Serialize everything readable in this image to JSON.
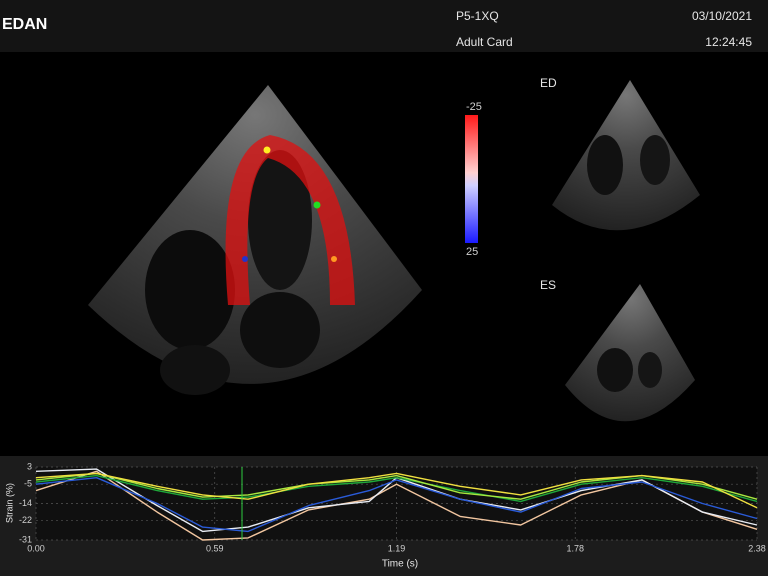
{
  "header": {
    "logo": "EDAN",
    "probe": "P5-1XQ",
    "preset": "Adult Card",
    "date": "03/10/2021",
    "time": "12:24:45"
  },
  "colorbar": {
    "top_label": "-25",
    "bottom_label": "25"
  },
  "thumbnails": {
    "ed_label": "ED",
    "es_label": "ES"
  },
  "strain_chart": {
    "type": "line",
    "x_label": "Time (s)",
    "y_label": "Strain (%)",
    "x": [
      0,
      0.2,
      0.4,
      0.55,
      0.7,
      0.9,
      1.1,
      1.19,
      1.4,
      1.6,
      1.8,
      2.0,
      2.2,
      2.38
    ],
    "xlim": [
      0,
      2.38
    ],
    "xticks": [
      {
        "value": 0,
        "label": "0.00"
      },
      0.59,
      1.19,
      1.78,
      2.38
    ],
    "ylim": [
      -31,
      3
    ],
    "yticks": [
      3,
      -5,
      -14,
      -22,
      -31
    ],
    "grid": true,
    "cursor": 0.68,
    "cursor_color": "#2ecc40",
    "series": [
      {
        "color": "#f2c6a0",
        "values": [
          -8,
          1,
          -18,
          -31,
          -30,
          -17,
          -12,
          -5,
          -20,
          -24,
          -10,
          -3,
          -18,
          -26
        ]
      },
      {
        "color": "#e8ecf4",
        "values": [
          1,
          2,
          -15,
          -27,
          -25,
          -16,
          -13,
          -2,
          -12,
          -17,
          -8,
          -3,
          -18,
          -24
        ]
      },
      {
        "color": "#2a5bd8",
        "values": [
          -5,
          -2,
          -14,
          -25,
          -27,
          -15,
          -8,
          -3,
          -12,
          -18,
          -7,
          -4,
          -14,
          -21
        ]
      },
      {
        "color": "#1fa83a",
        "values": [
          -4,
          -1,
          -8,
          -12,
          -11,
          -6,
          -4,
          -2,
          -8,
          -13,
          -5,
          -2,
          -6,
          -13
        ]
      },
      {
        "color": "#a8e840",
        "values": [
          -3,
          0,
          -7,
          -11,
          -10,
          -5,
          -3,
          -1,
          -9,
          -12,
          -4,
          -1,
          -5,
          -12
        ]
      },
      {
        "color": "#f0e040",
        "values": [
          -2,
          0,
          -6,
          -10,
          -12,
          -5,
          -2,
          0,
          -6,
          -10,
          -3,
          -1,
          -4,
          -16
        ]
      }
    ]
  }
}
